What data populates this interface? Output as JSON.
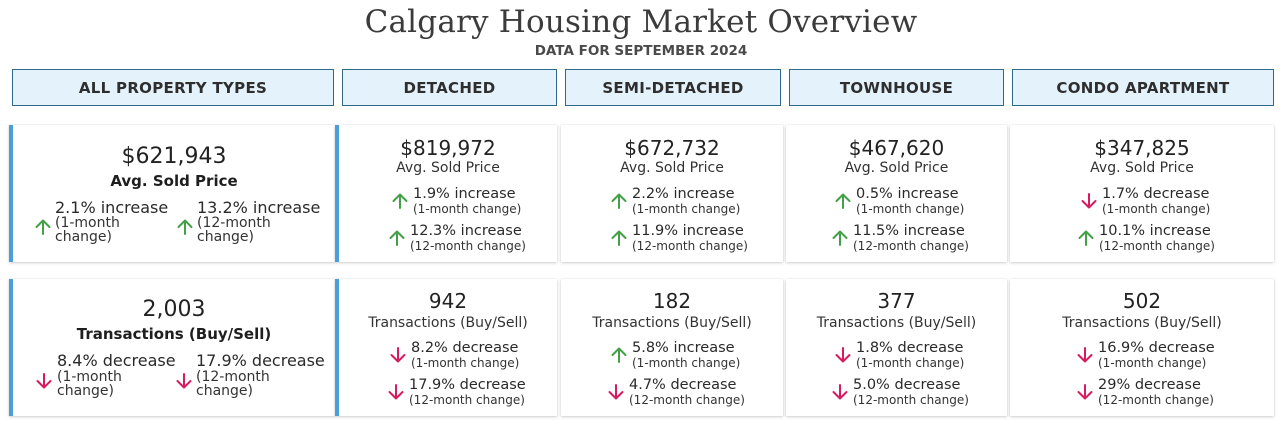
{
  "title": "Calgary Housing Market Overview",
  "subtitle": "DATA FOR SEPTEMBER 2024",
  "colors": {
    "up": "#43a047",
    "down": "#d81b60",
    "accent": "#4a9fd8",
    "header_bg": "#e4f3fb",
    "header_border": "#2c6a85"
  },
  "icons": {
    "up": "arrow-up-icon",
    "down": "arrow-down-icon"
  },
  "headers": [
    "ALL PROPERTY TYPES",
    "DETACHED",
    "SEMI-DETACHED",
    "TOWNHOUSE",
    "CONDO APARTMENT"
  ],
  "all": {
    "price": {
      "value": "$621,943",
      "label": "Avg. Sold Price",
      "m1": {
        "dir": "up",
        "pct": "2.1% increase",
        "sub1": "(1-month",
        "sub2": "change)"
      },
      "m12": {
        "dir": "up",
        "pct": "13.2% increase",
        "sub1": "(12-month",
        "sub2": "change)"
      }
    },
    "tx": {
      "value": "2,003",
      "label": "Transactions (Buy/Sell)",
      "m1": {
        "dir": "down",
        "pct": "8.4% decrease",
        "sub1": "(1-month",
        "sub2": "change)"
      },
      "m12": {
        "dir": "down",
        "pct": "17.9% decrease",
        "sub1": "(12-month",
        "sub2": "change)"
      }
    }
  },
  "types": [
    {
      "price": {
        "value": "$819,972",
        "label": "Avg. Sold Price",
        "m1": {
          "dir": "up",
          "pct": "1.9% increase",
          "sub": "(1-month change)"
        },
        "m12": {
          "dir": "up",
          "pct": "12.3% increase",
          "sub": "(12-month change)"
        }
      },
      "tx": {
        "value": "942",
        "label": "Transactions (Buy/Sell)",
        "m1": {
          "dir": "down",
          "pct": "8.2% decrease",
          "sub": "(1-month change)"
        },
        "m12": {
          "dir": "down",
          "pct": "17.9% decrease",
          "sub": "(12-month change)"
        }
      }
    },
    {
      "price": {
        "value": "$672,732",
        "label": "Avg. Sold Price",
        "m1": {
          "dir": "up",
          "pct": "2.2% increase",
          "sub": "(1-month change)"
        },
        "m12": {
          "dir": "up",
          "pct": "11.9% increase",
          "sub": "(12-month change)"
        }
      },
      "tx": {
        "value": "182",
        "label": "Transactions (Buy/Sell)",
        "m1": {
          "dir": "up",
          "pct": "5.8% increase",
          "sub": "(1-month change)"
        },
        "m12": {
          "dir": "down",
          "pct": "4.7% decrease",
          "sub": "(12-month change)"
        }
      }
    },
    {
      "price": {
        "value": "$467,620",
        "label": "Avg. Sold Price",
        "m1": {
          "dir": "up",
          "pct": "0.5% increase",
          "sub": "(1-month change)"
        },
        "m12": {
          "dir": "up",
          "pct": "11.5% increase",
          "sub": "(12-month change)"
        }
      },
      "tx": {
        "value": "377",
        "label": "Transactions (Buy/Sell)",
        "m1": {
          "dir": "down",
          "pct": "1.8% decrease",
          "sub": "(1-month change)"
        },
        "m12": {
          "dir": "down",
          "pct": "5.0% decrease",
          "sub": "(12-month change)"
        }
      }
    },
    {
      "price": {
        "value": "$347,825",
        "label": "Avg. Sold Price",
        "m1": {
          "dir": "down",
          "pct": "1.7% decrease",
          "sub": "(1-month change)"
        },
        "m12": {
          "dir": "up",
          "pct": "10.1% increase",
          "sub": "(12-month change)"
        }
      },
      "tx": {
        "value": "502",
        "label": "Transactions (Buy/Sell)",
        "m1": {
          "dir": "down",
          "pct": "16.9% decrease",
          "sub": "(1-month change)"
        },
        "m12": {
          "dir": "down",
          "pct": "29% decrease",
          "sub": "(12-month change)"
        }
      }
    }
  ]
}
